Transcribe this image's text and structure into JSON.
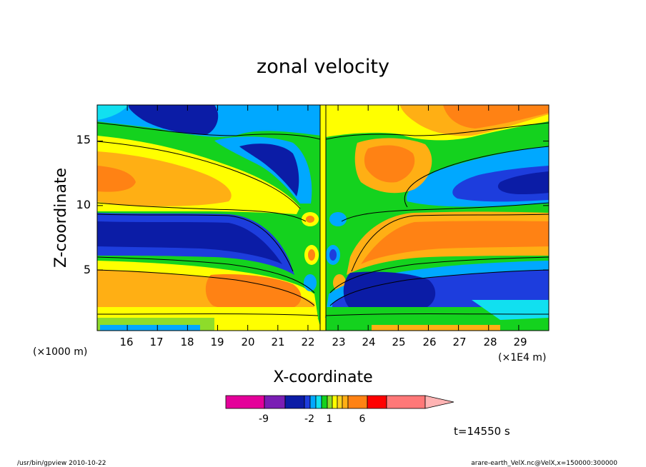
{
  "chart_data": {
    "type": "heatmap",
    "title": "zonal velocity",
    "xlabel": "X-coordinate",
    "ylabel": "Z-coordinate",
    "x_unit_left": "(×1000 m)",
    "x_unit_right": "(×1E4 m)",
    "x_ticks": [
      "16",
      "17",
      "18",
      "19",
      "20",
      "21",
      "22",
      "23",
      "24",
      "25",
      "26",
      "27",
      "28",
      "29"
    ],
    "y_ticks": [
      "5",
      "10",
      "15"
    ],
    "xlim": [
      15.0,
      30.0
    ],
    "ylim": [
      0.3,
      17.8
    ],
    "time_label": "t=14550 s",
    "colorbar": {
      "tick_labels": [
        "-9",
        "-2",
        "1",
        "6"
      ],
      "colors": [
        "#e4009a",
        "#7a1eb4",
        "#0b1ca6",
        "#1d3ddd",
        "#00a8ff",
        "#11e0f0",
        "#14d21e",
        "#8edc2a",
        "#ffff00",
        "#ffd21e",
        "#ffaf14",
        "#ff8214",
        "#ff0000",
        "#ff7878",
        "#ffb4b4"
      ]
    }
  },
  "footer": {
    "left": "/usr/bin/gpview   2010-10-22",
    "right": "arare-earth_VelX.nc@VelX,x=150000:300000"
  }
}
